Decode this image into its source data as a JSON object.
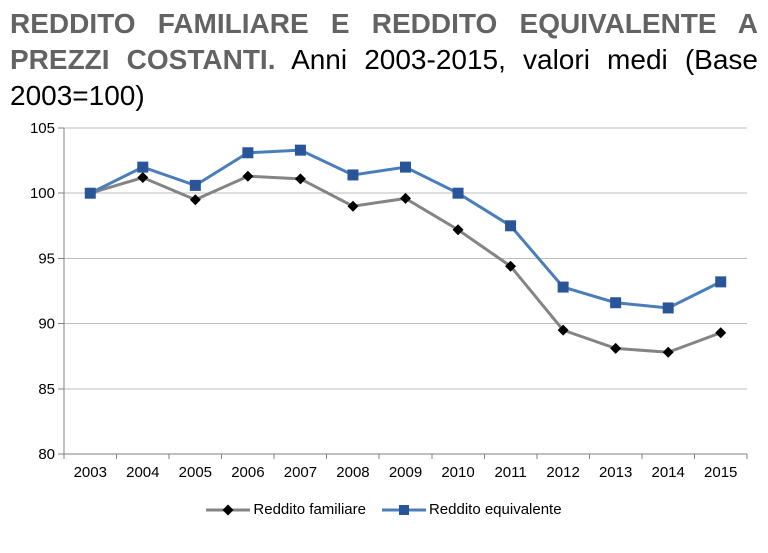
{
  "title": {
    "main": "REDDITO FAMILIARE E REDDITO EQUIVALENTE A PREZZI COSTANTI.",
    "subtitle": "Anni 2003-2015, valori medi (Base 2003=100)"
  },
  "chart_data": {
    "type": "line",
    "title": "REDDITO FAMILIARE E REDDITO EQUIVALENTE A PREZZI COSTANTI. Anni 2003-2015, valori medi (Base 2003=100)",
    "categories": [
      "2003",
      "2004",
      "2005",
      "2006",
      "2007",
      "2008",
      "2009",
      "2010",
      "2011",
      "2012",
      "2013",
      "2014",
      "2015"
    ],
    "series": [
      {
        "name": "Reddito familiare",
        "marker": "diamond",
        "line_color": "#848484",
        "marker_color": "#000000",
        "values": [
          100.0,
          101.2,
          99.5,
          101.3,
          101.1,
          99.0,
          99.6,
          97.2,
          94.4,
          89.5,
          88.1,
          87.8,
          89.3
        ]
      },
      {
        "name": "Reddito equivalente",
        "marker": "square",
        "line_color": "#4a7ebb",
        "marker_color": "#2a5699",
        "values": [
          100.0,
          102.0,
          100.6,
          103.1,
          103.3,
          101.4,
          102.0,
          100.0,
          97.5,
          92.8,
          91.6,
          91.2,
          93.2
        ]
      }
    ],
    "ylim": [
      80,
      105
    ],
    "yticks": [
      80,
      85,
      90,
      95,
      100,
      105
    ],
    "grid": true,
    "legend_position": "bottom",
    "axis_color": "#808080",
    "gridline_color": "#bdbdbd"
  }
}
